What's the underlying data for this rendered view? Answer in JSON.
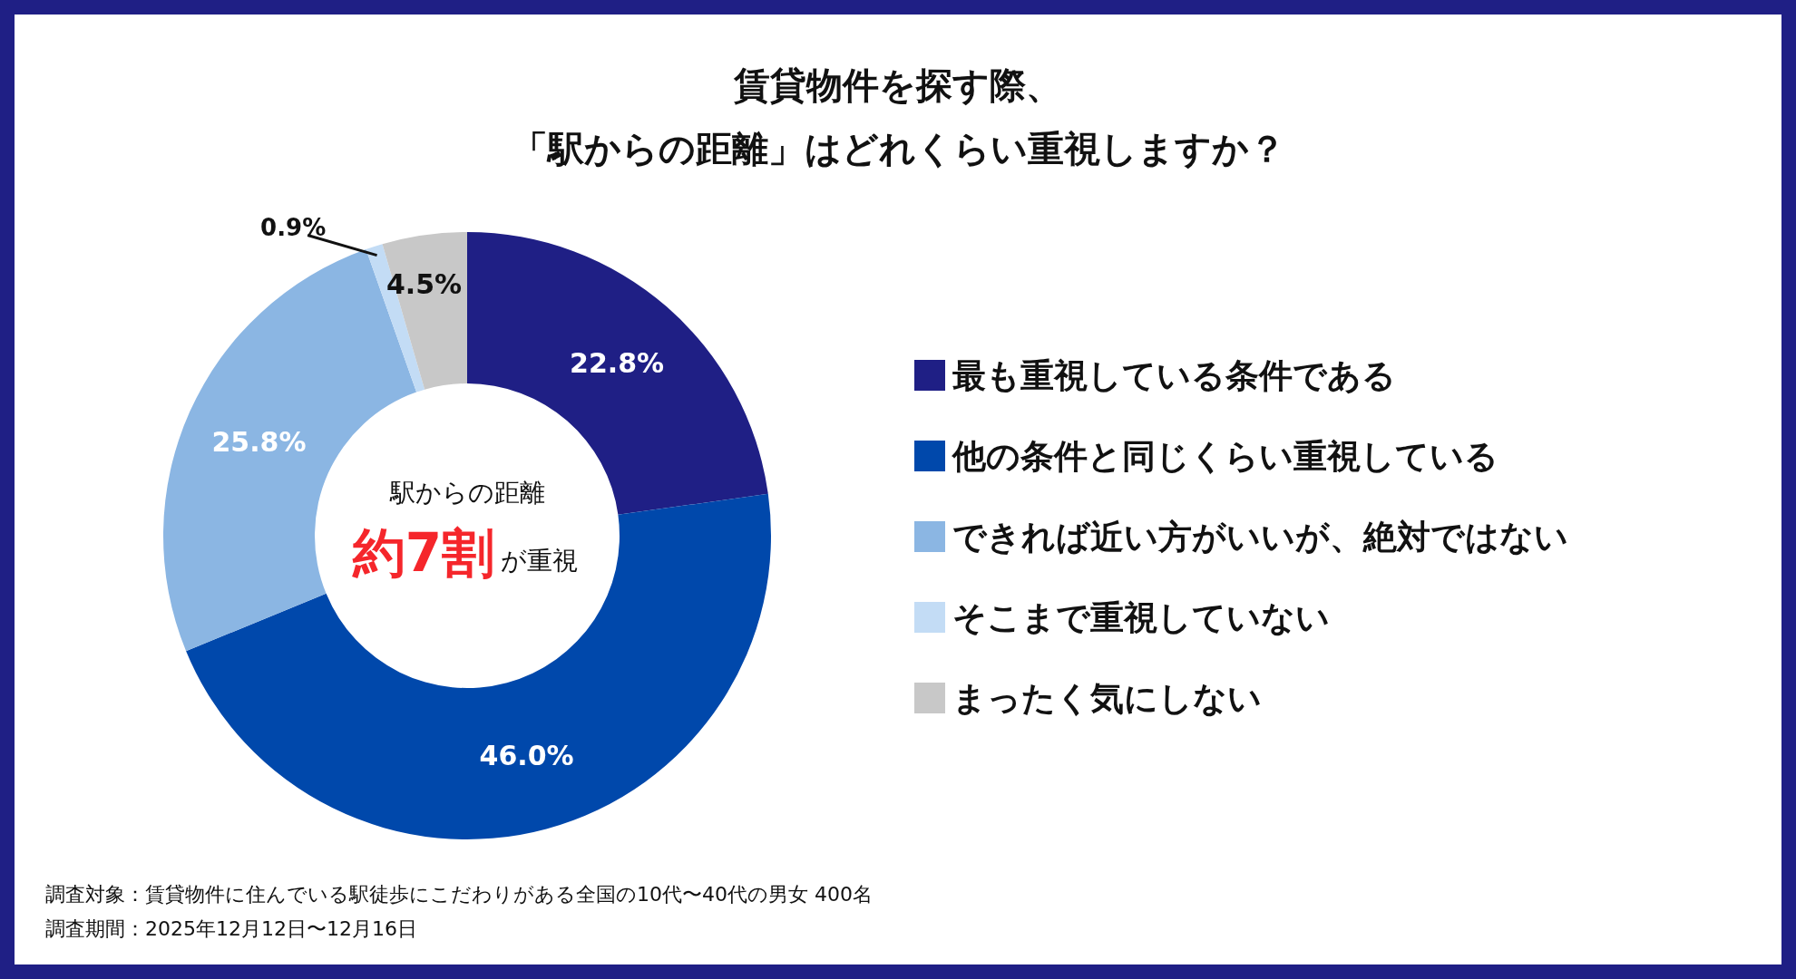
{
  "chart_data": {
    "type": "donut",
    "title": "賃貸物件を探す際、",
    "subtitle": "「駅からの距離」はどれくらい重視しますか？",
    "categories": [
      "最も重視している条件である",
      "他の条件と同じくらい重視している",
      "できれば近い方がいいが、絶対ではない",
      "そこまで重視していない",
      "まったく気にしない"
    ],
    "values": [
      22.8,
      46.0,
      25.8,
      0.9,
      4.5
    ],
    "colors": [
      "#1f1f85",
      "#0048ab",
      "#8bb6e3",
      "#c3dcf5",
      "#c8c8c8"
    ],
    "value_labels": [
      "22.8%",
      "46.0%",
      "25.8%",
      "0.9%",
      "4.5%"
    ],
    "legend": "right",
    "annotations": [
      "駅からの距離",
      "約7割",
      "が重視",
      "調査対象：賃貸物件に住んでいる駅徒歩にこだわりがある全国の10代〜40代の男女 400名",
      "調査期間：2025年12月12日〜12月16日"
    ]
  }
}
